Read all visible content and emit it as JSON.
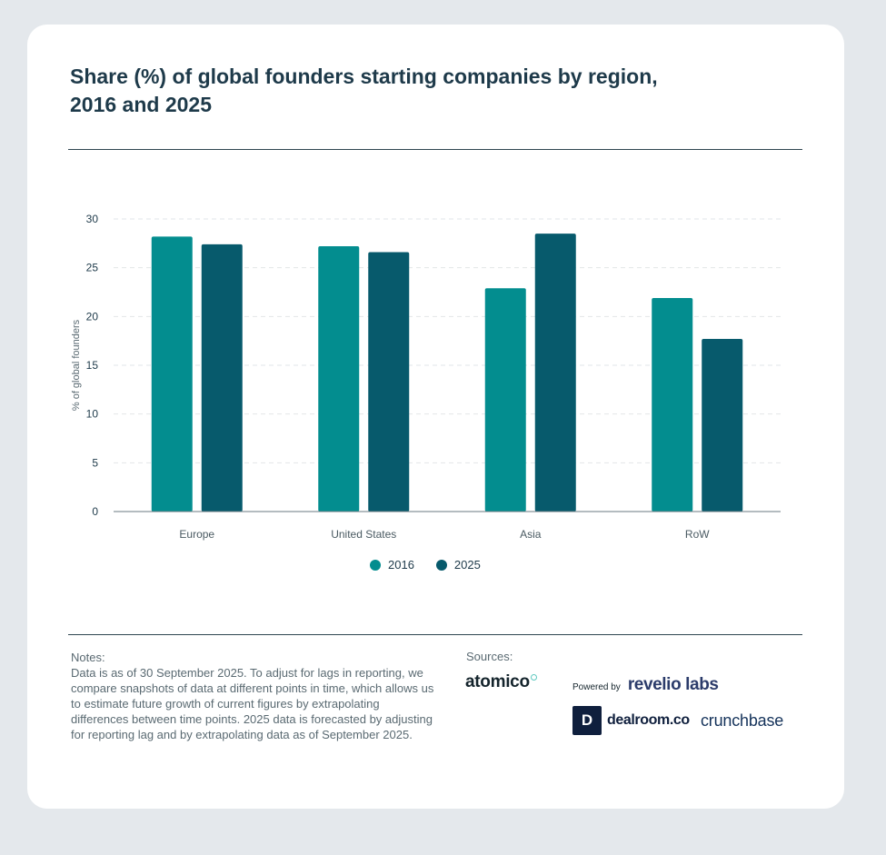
{
  "title": "Share (%) of global founders starting companies by region, 2016 and 2025",
  "chart_data": {
    "type": "bar",
    "title": "Share (%) of global founders starting companies by region, 2016 and 2025",
    "categories": [
      "Europe",
      "United States",
      "Asia",
      "RoW"
    ],
    "series": [
      {
        "name": "2016",
        "values": [
          28.2,
          27.2,
          22.9,
          21.9
        ],
        "color": "#038d8f"
      },
      {
        "name": "2025",
        "values": [
          27.4,
          26.6,
          28.5,
          17.7
        ],
        "color": "#075a6c"
      }
    ],
    "xlabel": "",
    "ylabel": "% of global founders",
    "ylim": [
      0,
      30
    ],
    "yticks": [
      0,
      5,
      10,
      15,
      20,
      25,
      30
    ],
    "grid": true,
    "legend": "bottom-center"
  },
  "notes": {
    "label": "Notes:",
    "body": "Data is as of 30 September 2025. To adjust for lags in reporting, we compare snapshots of data at different points in time, which allows us to estimate future growth of current figures by extrapolating differences between time points. 2025 data is forecasted by adjusting for reporting lag and by extrapolating data as of September 2025."
  },
  "sources": {
    "label": "Sources:",
    "atomico": "atomico",
    "powered_by": "Powered by",
    "revelio": "revelio labs",
    "dealroom_mark": "D",
    "dealroom": "dealroom.co",
    "crunchbase": "crunchbase"
  }
}
